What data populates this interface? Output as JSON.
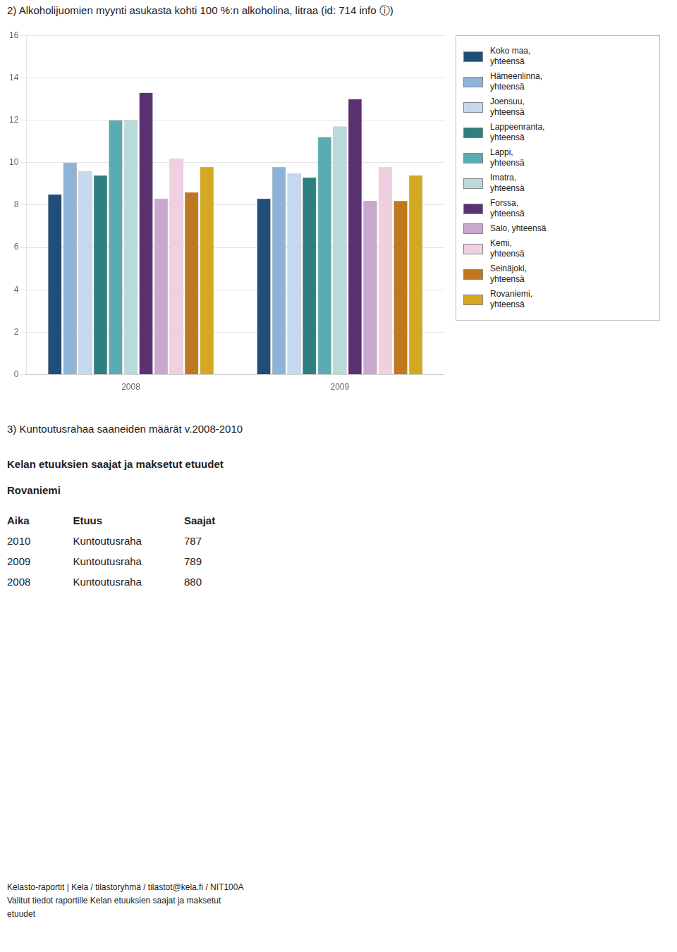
{
  "chart_data": {
    "type": "bar",
    "title": "2) Alkoholijuomien myynti asukasta kohti 100 %:n alkoholina, litraa (id: 714 info ⓘ)",
    "categories": [
      "2008",
      "2009"
    ],
    "series": [
      {
        "name": "Koko maa,\nyhteensä",
        "color": "#1f4e79",
        "values": [
          8.5,
          8.3
        ]
      },
      {
        "name": "Hämeenlinna,\nyhteensä",
        "color": "#8db4d8",
        "values": [
          10.0,
          9.8
        ]
      },
      {
        "name": "Joensuu,\nyhteensä",
        "color": "#c5d8ed",
        "values": [
          9.6,
          9.5
        ]
      },
      {
        "name": "Lappeenranta,\nyhteensä",
        "color": "#2e7f7f",
        "values": [
          9.4,
          9.3
        ]
      },
      {
        "name": "Lappi,\nyhteensä",
        "color": "#5aacb0",
        "values": [
          12.0,
          11.2
        ]
      },
      {
        "name": "Imatra,\nyhteensä",
        "color": "#b8dada",
        "values": [
          12.0,
          11.7
        ]
      },
      {
        "name": "Forssa,\nyhteensä",
        "color": "#5a3272",
        "values": [
          13.3,
          13.0
        ]
      },
      {
        "name": "Salo, yhteensä",
        "color": "#c8a8cc",
        "values": [
          8.3,
          8.2
        ]
      },
      {
        "name": "Kemi,\nyhteensä",
        "color": "#f0d0e0",
        "values": [
          10.2,
          9.8
        ]
      },
      {
        "name": "Seinäjoki,\nyhteensä",
        "color": "#c07820",
        "values": [
          8.6,
          8.2
        ]
      },
      {
        "name": "Rovaniemi,\nyhteensä",
        "color": "#d4a820",
        "values": [
          9.8,
          9.4
        ]
      }
    ],
    "ylim": [
      0,
      16
    ],
    "yticks": [
      0,
      2,
      4,
      6,
      8,
      10,
      12,
      14,
      16
    ],
    "grid": true,
    "legend": "right"
  },
  "section_title": "3) Kuntoutusrahaa saaneiden määrät v.2008-2010",
  "table": {
    "title": "Kelan etuuksien saajat ja maksetut etuudet",
    "subtitle": "Rovaniemi",
    "headers": [
      "Aika",
      "Etuus",
      "Saajat"
    ],
    "rows": [
      [
        "2010",
        "Kuntoutusraha",
        "787"
      ],
      [
        "2009",
        "Kuntoutusraha",
        "789"
      ],
      [
        "2008",
        "Kuntoutusraha",
        "880"
      ]
    ]
  },
  "footer": [
    "Kelasto-raportit | Kela / tilastoryhmä / tilastot@kela.fi / NIT100A",
    "Valitut tiedot raportille Kelan etuuksien saajat ja maksetut",
    "etuudet"
  ]
}
